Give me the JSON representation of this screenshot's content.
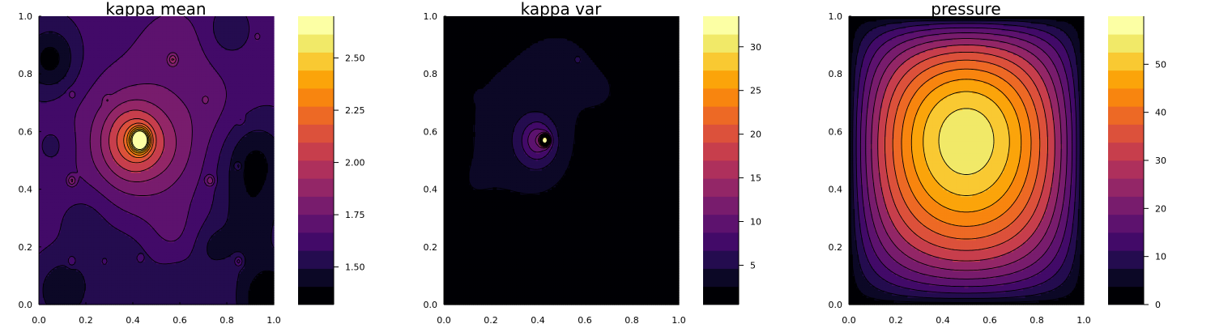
{
  "colorscale": [
    "#000004",
    "#0c0826",
    "#240c4f",
    "#420a68",
    "#5d126e",
    "#781c6d",
    "#932667",
    "#ae305c",
    "#c73e4c",
    "#dc513b",
    "#ed6925",
    "#f8850f",
    "#fba40a",
    "#f9c932",
    "#f1e968",
    "#fcffa4"
  ],
  "contour_line_color": "#000000",
  "chart_data": [
    {
      "type": "heatmap",
      "title": "kappa mean",
      "xlim": [
        0,
        1
      ],
      "ylim": [
        0,
        1
      ],
      "xticks": [
        "0.0",
        "0.2",
        "0.4",
        "0.6",
        "0.8",
        "1.0"
      ],
      "yticks": [
        "0.0",
        "0.2",
        "0.4",
        "0.6",
        "0.8",
        "1.0"
      ],
      "colorbar": {
        "range": [
          1.32,
          2.7
        ],
        "ticks": [
          1.5,
          1.75,
          2.0,
          2.25,
          2.5
        ],
        "tick_labels": [
          "1.50",
          "1.75",
          "2.00",
          "2.25",
          "2.50"
        ],
        "levels": 15
      },
      "field": {
        "base": 1.62,
        "bumps": [
          {
            "x": 0.43,
            "y": 0.57,
            "amp": 1.08,
            "sigma": 0.025
          },
          {
            "x": 0.4,
            "y": 0.57,
            "amp": 0.35,
            "sigma": 0.09
          },
          {
            "x": 0.4,
            "y": 0.55,
            "amp": 0.18,
            "sigma": 0.2
          },
          {
            "x": 0.57,
            "y": 0.6,
            "amp": 0.05,
            "sigma": 0.1
          },
          {
            "x": 0.58,
            "y": 0.9,
            "amp": 0.09,
            "sigma": 0.12
          },
          {
            "x": 0.75,
            "y": 0.7,
            "amp": 0.06,
            "sigma": 0.1
          },
          {
            "x": 0.57,
            "y": 0.24,
            "amp": 0.06,
            "sigma": 0.08
          },
          {
            "x": 0.57,
            "y": 0.5,
            "amp": 0.05,
            "sigma": 0.09
          },
          {
            "x": 0.05,
            "y": 0.85,
            "amp": -0.25,
            "sigma": 0.08
          },
          {
            "x": 0.92,
            "y": 0.5,
            "amp": -0.22,
            "sigma": 0.1
          },
          {
            "x": 0.98,
            "y": 0.02,
            "amp": -0.3,
            "sigma": 0.1
          },
          {
            "x": 0.1,
            "y": 0.05,
            "amp": -0.2,
            "sigma": 0.08
          },
          {
            "x": 0.35,
            "y": 0.15,
            "amp": -0.12,
            "sigma": 0.1
          },
          {
            "x": 0.9,
            "y": 0.3,
            "amp": -0.15,
            "sigma": 0.1
          },
          {
            "x": 0.2,
            "y": 0.3,
            "amp": -0.1,
            "sigma": 0.08
          },
          {
            "x": 0.6,
            "y": 0.05,
            "amp": -0.12,
            "sigma": 0.08
          },
          {
            "x": 0.74,
            "y": 0.2,
            "amp": -0.12,
            "sigma": 0.06
          },
          {
            "x": 0.8,
            "y": 0.95,
            "amp": -0.1,
            "sigma": 0.06
          },
          {
            "x": 0.07,
            "y": 0.55,
            "amp": -0.08,
            "sigma": 0.06
          },
          {
            "x": 0.57,
            "y": 0.85,
            "amp": 0.24,
            "sigma": 0.012
          },
          {
            "x": 0.73,
            "y": 0.43,
            "amp": 0.25,
            "sigma": 0.012
          },
          {
            "x": 0.14,
            "y": 0.43,
            "amp": 0.24,
            "sigma": 0.012
          },
          {
            "x": 0.85,
            "y": 0.15,
            "amp": 0.22,
            "sigma": 0.012
          },
          {
            "x": 0.85,
            "y": 0.48,
            "amp": 0.18,
            "sigma": 0.01
          },
          {
            "x": 0.14,
            "y": 0.15,
            "amp": 0.16,
            "sigma": 0.012
          },
          {
            "x": 0.28,
            "y": 0.15,
            "amp": 0.12,
            "sigma": 0.01
          },
          {
            "x": 0.43,
            "y": 0.16,
            "amp": 0.1,
            "sigma": 0.01
          },
          {
            "x": 0.93,
            "y": 0.93,
            "amp": 0.14,
            "sigma": 0.01
          },
          {
            "x": 0.14,
            "y": 0.73,
            "amp": 0.12,
            "sigma": 0.01
          },
          {
            "x": 0.86,
            "y": 0.64,
            "amp": 0.1,
            "sigma": 0.01
          },
          {
            "x": 0.71,
            "y": 0.71,
            "amp": 0.1,
            "sigma": 0.01
          },
          {
            "x": 0.29,
            "y": 0.71,
            "amp": 0.1,
            "sigma": 0.01
          }
        ]
      }
    },
    {
      "type": "heatmap",
      "title": "kappa var",
      "xlim": [
        0,
        1
      ],
      "ylim": [
        0,
        1
      ],
      "xticks": [
        "0.0",
        "0.2",
        "0.4",
        "0.6",
        "0.8",
        "1.0"
      ],
      "yticks": [
        "0.0",
        "0.2",
        "0.4",
        "0.6",
        "0.8",
        "1.0"
      ],
      "colorbar": {
        "range": [
          0.5,
          33.5
        ],
        "ticks": [
          5,
          10,
          15,
          20,
          25,
          30
        ],
        "tick_labels": [
          "5",
          "10",
          "15",
          "20",
          "25",
          "30"
        ],
        "levels": 15
      },
      "field": {
        "base": 0.6,
        "bumps": [
          {
            "x": 0.43,
            "y": 0.57,
            "amp": 32.0,
            "sigma": 0.012
          },
          {
            "x": 0.4,
            "y": 0.57,
            "amp": 6.0,
            "sigma": 0.045
          },
          {
            "x": 0.4,
            "y": 0.55,
            "amp": 3.0,
            "sigma": 0.1
          },
          {
            "x": 0.35,
            "y": 0.5,
            "amp": 1.5,
            "sigma": 0.2
          },
          {
            "x": 0.2,
            "y": 0.7,
            "amp": 1.6,
            "sigma": 0.15
          },
          {
            "x": 0.55,
            "y": 0.85,
            "amp": 1.6,
            "sigma": 0.12
          },
          {
            "x": 0.7,
            "y": 0.72,
            "amp": 1.4,
            "sigma": 0.1
          },
          {
            "x": 0.1,
            "y": 0.4,
            "amp": 1.2,
            "sigma": 0.1
          },
          {
            "x": 0.9,
            "y": 0.55,
            "amp": 1.0,
            "sigma": 0.1
          },
          {
            "x": 0.4,
            "y": 0.85,
            "amp": 1.2,
            "sigma": 0.12
          },
          {
            "x": 0.85,
            "y": 0.85,
            "amp": 0.9,
            "sigma": 0.08
          },
          {
            "x": 0.57,
            "y": 0.85,
            "amp": 3.0,
            "sigma": 0.012
          },
          {
            "x": 0.86,
            "y": 0.15,
            "amp": 2.0,
            "sigma": 0.012
          },
          {
            "x": 0.15,
            "y": 0.72,
            "amp": 2.0,
            "sigma": 0.012
          }
        ]
      }
    },
    {
      "type": "heatmap",
      "title": "pressure",
      "xlim": [
        0,
        1
      ],
      "ylim": [
        0,
        1
      ],
      "xticks": [
        "0.0",
        "0.2",
        "0.4",
        "0.6",
        "0.8",
        "1.0"
      ],
      "yticks": [
        "0.0",
        "0.2",
        "0.4",
        "0.6",
        "0.8",
        "1.0"
      ],
      "colorbar": {
        "range": [
          0,
          60
        ],
        "ticks": [
          0,
          10,
          20,
          30,
          40,
          50
        ],
        "tick_labels": [
          "0",
          "10",
          "20",
          "30",
          "40",
          "50"
        ],
        "levels": 15
      },
      "field": {
        "kind": "pressure",
        "peak": 60,
        "center": [
          0.5,
          0.66
        ]
      }
    }
  ]
}
